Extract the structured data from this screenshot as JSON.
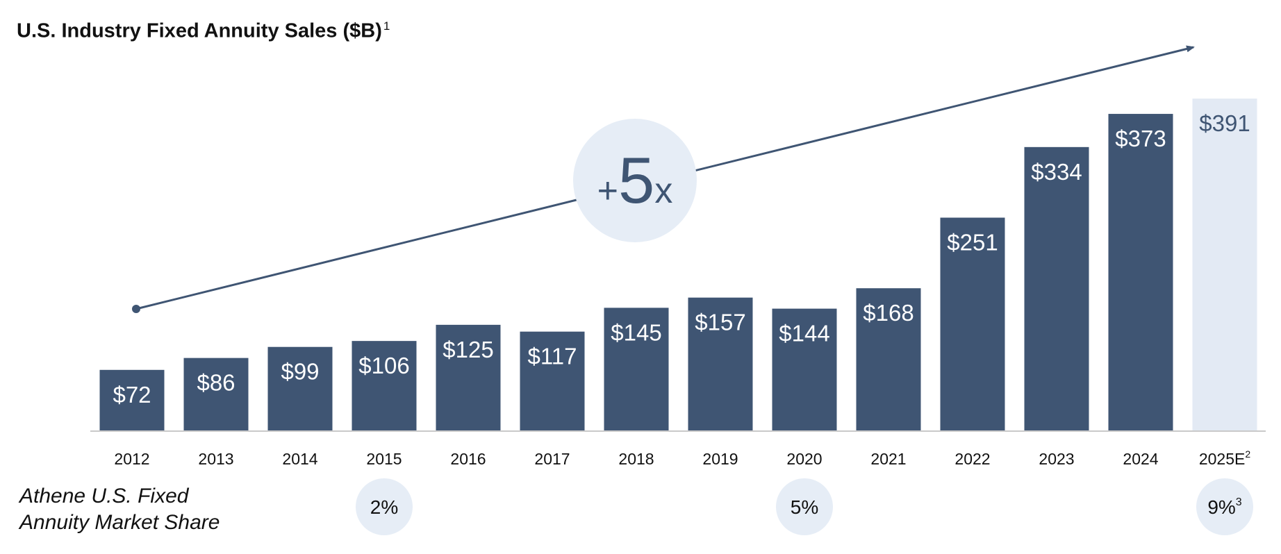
{
  "title": "U.S. Industry Fixed Annuity Sales ($B)",
  "title_footnote": "1",
  "multiplier_label": "+5x",
  "market_share": {
    "label_line1": "Athene U.S. Fixed",
    "label_line2": "Annuity Market Share",
    "values": [
      {
        "year": "2015",
        "text": "2%",
        "footnote": ""
      },
      {
        "year": "2020",
        "text": "5%",
        "footnote": ""
      },
      {
        "year": "2025E",
        "text": "9%",
        "footnote": "3"
      }
    ]
  },
  "colors": {
    "bar": "#3f5573",
    "estimate_bar": "#e3eaf4",
    "estimate_text": "#3f5573",
    "bubble": "#e6edf6",
    "arrow": "#3f5573",
    "baseline": "#c9c9c9"
  },
  "chart_data": {
    "type": "bar",
    "categories": [
      "2012",
      "2013",
      "2014",
      "2015",
      "2016",
      "2017",
      "2018",
      "2019",
      "2020",
      "2021",
      "2022",
      "2023",
      "2024",
      "2025E"
    ],
    "category_footnotes": [
      "",
      "",
      "",
      "",
      "",
      "",
      "",
      "",
      "",
      "",
      "",
      "",
      "",
      "2"
    ],
    "values": [
      72,
      86,
      99,
      106,
      125,
      117,
      145,
      157,
      144,
      168,
      251,
      334,
      373,
      391
    ],
    "value_labels": [
      "$72",
      "$86",
      "$99",
      "$106",
      "$125",
      "$117",
      "$145",
      "$157",
      "$144",
      "$168",
      "$251",
      "$334",
      "$373",
      "$391"
    ],
    "estimated": [
      false,
      false,
      false,
      false,
      false,
      false,
      false,
      false,
      false,
      false,
      false,
      false,
      false,
      true
    ],
    "title": "U.S. Industry Fixed Annuity Sales ($B)",
    "xlabel": "",
    "ylabel": "",
    "ylim": [
      0,
      391
    ],
    "grid": false,
    "legend": "none"
  }
}
